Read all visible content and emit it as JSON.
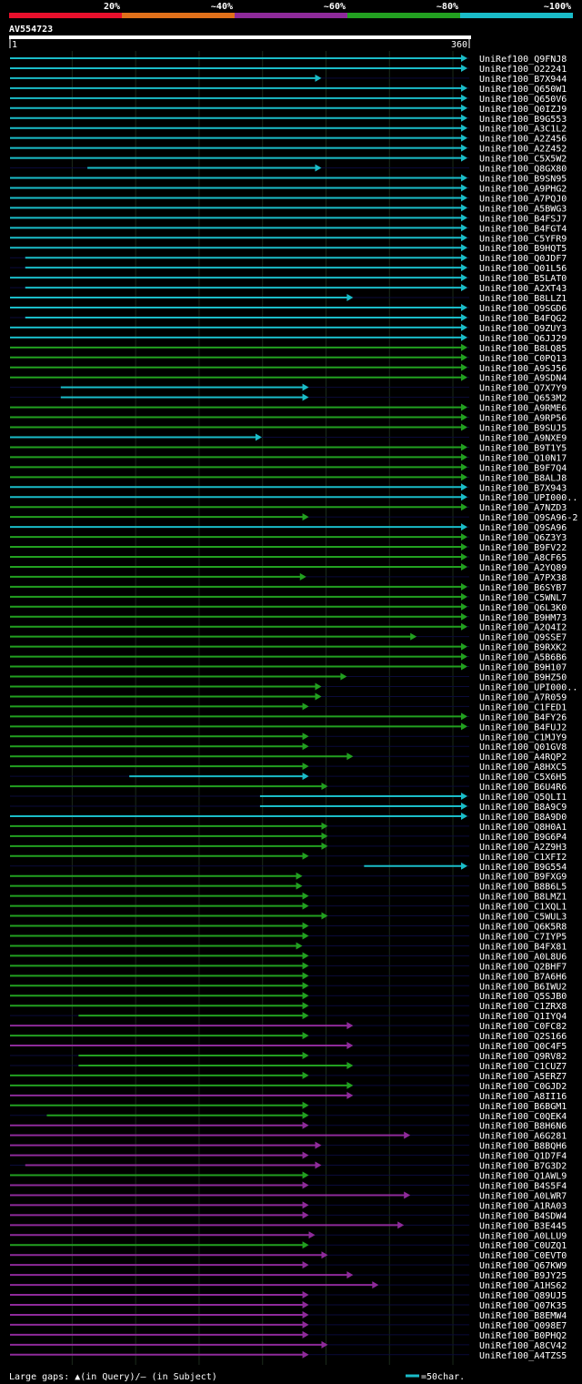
{
  "legend_scale": {
    "items": [
      {
        "label": "20%",
        "color": "#e8102c"
      },
      {
        "label": "~40%",
        "color": "#e0701a"
      },
      {
        "label": "~60%",
        "color": "#8e2a9a"
      },
      {
        "label": "~80%",
        "color": "#22a020"
      },
      {
        "label": "~100%",
        "color": "#1abcc8"
      }
    ]
  },
  "query": {
    "name": "AV554723",
    "start_label": "1",
    "end_label": "360"
  },
  "footer": {
    "gaps_text": "Large gaps: ▲(in Query)/– (in Subject)",
    "scale_text": "=50char."
  },
  "chart_data": {
    "type": "alignment",
    "query_length": 360,
    "title": "AV554723",
    "colors": {
      "100": "#1abcc8",
      "80": "#22a020",
      "60": "#8e2a9a",
      "40": "#e0701a",
      "20": "#e8102c"
    },
    "hits": [
      {
        "name": "UniRef100_Q9FNJ8",
        "start": 1,
        "end": 360,
        "id": 100
      },
      {
        "name": "UniRef100_O22241",
        "start": 1,
        "end": 360,
        "id": 100
      },
      {
        "name": "UniRef100_B7X944",
        "start": 1,
        "end": 245,
        "id": 100
      },
      {
        "name": "UniRef100_Q650W1",
        "start": 1,
        "end": 360,
        "id": 100
      },
      {
        "name": "UniRef100_Q650V6",
        "start": 1,
        "end": 360,
        "id": 100
      },
      {
        "name": "UniRef100_Q0IZJ9",
        "start": 1,
        "end": 360,
        "id": 100
      },
      {
        "name": "UniRef100_B9G553",
        "start": 1,
        "end": 360,
        "id": 100
      },
      {
        "name": "UniRef100_A3C1L2",
        "start": 1,
        "end": 360,
        "id": 100
      },
      {
        "name": "UniRef100_A2Z456",
        "start": 1,
        "end": 360,
        "id": 100
      },
      {
        "name": "UniRef100_A2Z452",
        "start": 1,
        "end": 360,
        "id": 100
      },
      {
        "name": "UniRef100_C5X5W2",
        "start": 1,
        "end": 360,
        "id": 100
      },
      {
        "name": "UniRef100_Q8GX80",
        "start": 62,
        "end": 245,
        "id": 100
      },
      {
        "name": "UniRef100_B9SN95",
        "start": 1,
        "end": 360,
        "id": 100
      },
      {
        "name": "UniRef100_A9PHG2",
        "start": 1,
        "end": 360,
        "id": 100
      },
      {
        "name": "UniRef100_A7PQJ0",
        "start": 1,
        "end": 360,
        "id": 100
      },
      {
        "name": "UniRef100_A5BWG3",
        "start": 1,
        "end": 360,
        "id": 100
      },
      {
        "name": "UniRef100_B4FSJ7",
        "start": 1,
        "end": 360,
        "id": 100
      },
      {
        "name": "UniRef100_B4FGT4",
        "start": 1,
        "end": 360,
        "id": 100
      },
      {
        "name": "UniRef100_C5YFR9",
        "start": 1,
        "end": 360,
        "id": 100
      },
      {
        "name": "UniRef100_B9HQT5",
        "start": 1,
        "end": 360,
        "id": 100
      },
      {
        "name": "UniRef100_Q0JDF7",
        "start": 13,
        "end": 360,
        "id": 100
      },
      {
        "name": "UniRef100_Q01L56",
        "start": 13,
        "end": 360,
        "id": 100
      },
      {
        "name": "UniRef100_B5LAT0",
        "start": 1,
        "end": 360,
        "id": 100
      },
      {
        "name": "UniRef100_A2XT43",
        "start": 13,
        "end": 360,
        "id": 100
      },
      {
        "name": "UniRef100_B8LLZ1",
        "start": 1,
        "end": 270,
        "id": 100
      },
      {
        "name": "UniRef100_Q9SGD6",
        "start": 1,
        "end": 360,
        "id": 100
      },
      {
        "name": "UniRef100_B4FQG2",
        "start": 13,
        "end": 360,
        "id": 100
      },
      {
        "name": "UniRef100_Q9ZUY3",
        "start": 1,
        "end": 360,
        "id": 100
      },
      {
        "name": "UniRef100_Q6JJ29",
        "start": 1,
        "end": 360,
        "id": 100
      },
      {
        "name": "UniRef100_B8LQ85",
        "start": 1,
        "end": 360,
        "id": 80
      },
      {
        "name": "UniRef100_C0PQ13",
        "start": 1,
        "end": 360,
        "id": 80
      },
      {
        "name": "UniRef100_A9SJ56",
        "start": 1,
        "end": 360,
        "id": 80
      },
      {
        "name": "UniRef100_A9SDN4",
        "start": 1,
        "end": 360,
        "id": 80
      },
      {
        "name": "UniRef100_Q7X7Y9",
        "start": 41,
        "end": 235,
        "id": 100
      },
      {
        "name": "UniRef100_Q653M2",
        "start": 41,
        "end": 235,
        "id": 100
      },
      {
        "name": "UniRef100_A9RME6",
        "start": 1,
        "end": 360,
        "id": 80
      },
      {
        "name": "UniRef100_A9RP56",
        "start": 1,
        "end": 360,
        "id": 80
      },
      {
        "name": "UniRef100_B9SUJ5",
        "start": 1,
        "end": 360,
        "id": 80
      },
      {
        "name": "UniRef100_A9NXE9",
        "start": 1,
        "end": 198,
        "id": 100
      },
      {
        "name": "UniRef100_B9T1Y5",
        "start": 1,
        "end": 360,
        "id": 80
      },
      {
        "name": "UniRef100_Q10N17",
        "start": 1,
        "end": 360,
        "id": 80
      },
      {
        "name": "UniRef100_B9F7Q4",
        "start": 1,
        "end": 360,
        "id": 80
      },
      {
        "name": "UniRef100_B8ALJ8",
        "start": 1,
        "end": 360,
        "id": 80
      },
      {
        "name": "UniRef100_B7X943",
        "start": 1,
        "end": 360,
        "id": 100
      },
      {
        "name": "UniRef100_UPI000..",
        "start": 1,
        "end": 360,
        "id": 100
      },
      {
        "name": "UniRef100_A7NZD3",
        "start": 1,
        "end": 360,
        "id": 80
      },
      {
        "name": "UniRef100_Q9SA96-2",
        "start": 1,
        "end": 235,
        "id": 80
      },
      {
        "name": "UniRef100_Q9SA96",
        "start": 1,
        "end": 360,
        "id": 100
      },
      {
        "name": "UniRef100_Q6Z3Y3",
        "start": 1,
        "end": 360,
        "id": 80
      },
      {
        "name": "UniRef100_B9FV22",
        "start": 1,
        "end": 360,
        "id": 80
      },
      {
        "name": "UniRef100_A8CF65",
        "start": 1,
        "end": 360,
        "id": 80
      },
      {
        "name": "UniRef100_A2YQ89",
        "start": 1,
        "end": 360,
        "id": 80
      },
      {
        "name": "UniRef100_A7PX38",
        "start": 1,
        "end": 233,
        "id": 80
      },
      {
        "name": "UniRef100_B6SYB7",
        "start": 1,
        "end": 360,
        "id": 80
      },
      {
        "name": "UniRef100_C5WNL7",
        "start": 1,
        "end": 360,
        "id": 80
      },
      {
        "name": "UniRef100_Q6L3K0",
        "start": 1,
        "end": 360,
        "id": 80
      },
      {
        "name": "UniRef100_B9HM73",
        "start": 1,
        "end": 360,
        "id": 80
      },
      {
        "name": "UniRef100_A2Q4I2",
        "start": 1,
        "end": 360,
        "id": 80
      },
      {
        "name": "UniRef100_Q9SSE7",
        "start": 1,
        "end": 320,
        "id": 80
      },
      {
        "name": "UniRef100_B9RXK2",
        "start": 1,
        "end": 360,
        "id": 80
      },
      {
        "name": "UniRef100_A5B6B6",
        "start": 1,
        "end": 360,
        "id": 80
      },
      {
        "name": "UniRef100_B9H107",
        "start": 1,
        "end": 360,
        "id": 80
      },
      {
        "name": "UniRef100_B9HZ50",
        "start": 1,
        "end": 265,
        "id": 80
      },
      {
        "name": "UniRef100_UPI000..",
        "start": 1,
        "end": 245,
        "id": 80
      },
      {
        "name": "UniRef100_A7R059",
        "start": 1,
        "end": 245,
        "id": 80
      },
      {
        "name": "UniRef100_C1FED1",
        "start": 1,
        "end": 235,
        "id": 80
      },
      {
        "name": "UniRef100_B4FY26",
        "start": 1,
        "end": 360,
        "id": 80
      },
      {
        "name": "UniRef100_B4FUJ2",
        "start": 1,
        "end": 360,
        "id": 80
      },
      {
        "name": "UniRef100_C1MJY9",
        "start": 1,
        "end": 235,
        "id": 80
      },
      {
        "name": "UniRef100_Q01GV8",
        "start": 1,
        "end": 235,
        "id": 80
      },
      {
        "name": "UniRef100_A4RQP2",
        "start": 1,
        "end": 270,
        "id": 80
      },
      {
        "name": "UniRef100_A8HXC5",
        "start": 1,
        "end": 235,
        "id": 80
      },
      {
        "name": "UniRef100_C5X6H5",
        "start": 95,
        "end": 235,
        "id": 100
      },
      {
        "name": "UniRef100_B6U4R6",
        "start": 1,
        "end": 250,
        "id": 80
      },
      {
        "name": "UniRef100_Q5QLI1",
        "start": 198,
        "end": 360,
        "id": 100
      },
      {
        "name": "UniRef100_B8A9C9",
        "start": 198,
        "end": 360,
        "id": 100
      },
      {
        "name": "UniRef100_B8A9D0",
        "start": 1,
        "end": 360,
        "id": 100
      },
      {
        "name": "UniRef100_Q8H0A1",
        "start": 1,
        "end": 250,
        "id": 80
      },
      {
        "name": "UniRef100_B9G6P4",
        "start": 1,
        "end": 250,
        "id": 80
      },
      {
        "name": "UniRef100_A2Z9H3",
        "start": 1,
        "end": 250,
        "id": 80
      },
      {
        "name": "UniRef100_C1XFI2",
        "start": 1,
        "end": 235,
        "id": 80
      },
      {
        "name": "UniRef100_B9G554",
        "start": 280,
        "end": 360,
        "id": 100
      },
      {
        "name": "UniRef100_B9FXG9",
        "start": 1,
        "end": 230,
        "id": 80
      },
      {
        "name": "UniRef100_B8B6L5",
        "start": 1,
        "end": 230,
        "id": 80
      },
      {
        "name": "UniRef100_B8LMZ1",
        "start": 1,
        "end": 235,
        "id": 80
      },
      {
        "name": "UniRef100_C1XQL1",
        "start": 1,
        "end": 235,
        "id": 80
      },
      {
        "name": "UniRef100_C5WUL3",
        "start": 1,
        "end": 250,
        "id": 80
      },
      {
        "name": "UniRef100_Q6K5R8",
        "start": 1,
        "end": 235,
        "id": 80
      },
      {
        "name": "UniRef100_C7IYP5",
        "start": 1,
        "end": 235,
        "id": 80
      },
      {
        "name": "UniRef100_B4FX81",
        "start": 1,
        "end": 230,
        "id": 80
      },
      {
        "name": "UniRef100_A0L8U6",
        "start": 1,
        "end": 235,
        "id": 80
      },
      {
        "name": "UniRef100_Q2BHF7",
        "start": 1,
        "end": 235,
        "id": 80
      },
      {
        "name": "UniRef100_B7A6H6",
        "start": 1,
        "end": 235,
        "id": 80
      },
      {
        "name": "UniRef100_B6IWU2",
        "start": 1,
        "end": 235,
        "id": 80
      },
      {
        "name": "UniRef100_Q5SJB0",
        "start": 1,
        "end": 235,
        "id": 80
      },
      {
        "name": "UniRef100_C1ZRX8",
        "start": 1,
        "end": 235,
        "id": 80
      },
      {
        "name": "UniRef100_Q1IYQ4",
        "start": 55,
        "end": 235,
        "id": 80
      },
      {
        "name": "UniRef100_C0FC82",
        "start": 1,
        "end": 270,
        "id": 60
      },
      {
        "name": "UniRef100_Q2S166",
        "start": 1,
        "end": 235,
        "id": 80
      },
      {
        "name": "UniRef100_Q0C4F5",
        "start": 1,
        "end": 270,
        "id": 60
      },
      {
        "name": "UniRef100_Q9RV82",
        "start": 55,
        "end": 235,
        "id": 80
      },
      {
        "name": "UniRef100_C1CUZ7",
        "start": 55,
        "end": 270,
        "id": 80
      },
      {
        "name": "UniRef100_A5ERZ7",
        "start": 1,
        "end": 235,
        "id": 80
      },
      {
        "name": "UniRef100_C0GJD2",
        "start": 1,
        "end": 270,
        "id": 80
      },
      {
        "name": "UniRef100_A8II16",
        "start": 1,
        "end": 270,
        "id": 60
      },
      {
        "name": "UniRef100_B6BGM1",
        "start": 1,
        "end": 235,
        "id": 80
      },
      {
        "name": "UniRef100_C0QEK4",
        "start": 30,
        "end": 235,
        "id": 80
      },
      {
        "name": "UniRef100_B8H6N6",
        "start": 1,
        "end": 235,
        "id": 60
      },
      {
        "name": "UniRef100_A6G281",
        "start": 1,
        "end": 315,
        "id": 60
      },
      {
        "name": "UniRef100_B8BQH6",
        "start": 1,
        "end": 245,
        "id": 60
      },
      {
        "name": "UniRef100_Q1D7F4",
        "start": 1,
        "end": 235,
        "id": 60
      },
      {
        "name": "UniRef100_B7G3D2",
        "start": 13,
        "end": 245,
        "id": 60
      },
      {
        "name": "UniRef100_Q1AWL9",
        "start": 1,
        "end": 235,
        "id": 80
      },
      {
        "name": "UniRef100_B4S5F4",
        "start": 1,
        "end": 235,
        "id": 60
      },
      {
        "name": "UniRef100_A0LWR7",
        "start": 1,
        "end": 315,
        "id": 60
      },
      {
        "name": "UniRef100_A1RA03",
        "start": 1,
        "end": 235,
        "id": 60
      },
      {
        "name": "UniRef100_B4SDW4",
        "start": 1,
        "end": 235,
        "id": 60
      },
      {
        "name": "UniRef100_B3E445",
        "start": 1,
        "end": 310,
        "id": 60
      },
      {
        "name": "UniRef100_A0LLU9",
        "start": 1,
        "end": 240,
        "id": 60
      },
      {
        "name": "UniRef100_C0UZQ1",
        "start": 1,
        "end": 235,
        "id": 80
      },
      {
        "name": "UniRef100_C0EVT0",
        "start": 1,
        "end": 250,
        "id": 60
      },
      {
        "name": "UniRef100_Q67KW9",
        "start": 1,
        "end": 235,
        "id": 60
      },
      {
        "name": "UniRef100_B9JY25",
        "start": 1,
        "end": 270,
        "id": 60
      },
      {
        "name": "UniRef100_A1HS62",
        "start": 1,
        "end": 290,
        "id": 60
      },
      {
        "name": "UniRef100_Q89UJ5",
        "start": 1,
        "end": 235,
        "id": 60
      },
      {
        "name": "UniRef100_Q07K35",
        "start": 1,
        "end": 235,
        "id": 60
      },
      {
        "name": "UniRef100_B8EMW4",
        "start": 1,
        "end": 235,
        "id": 60
      },
      {
        "name": "UniRef100_Q098E7",
        "start": 1,
        "end": 235,
        "id": 60
      },
      {
        "name": "UniRef100_B0PHQ2",
        "start": 1,
        "end": 235,
        "id": 60
      },
      {
        "name": "UniRef100_A8CV42",
        "start": 1,
        "end": 250,
        "id": 60
      },
      {
        "name": "UniRef100_A4TZS5",
        "start": 1,
        "end": 235,
        "id": 60
      }
    ]
  }
}
